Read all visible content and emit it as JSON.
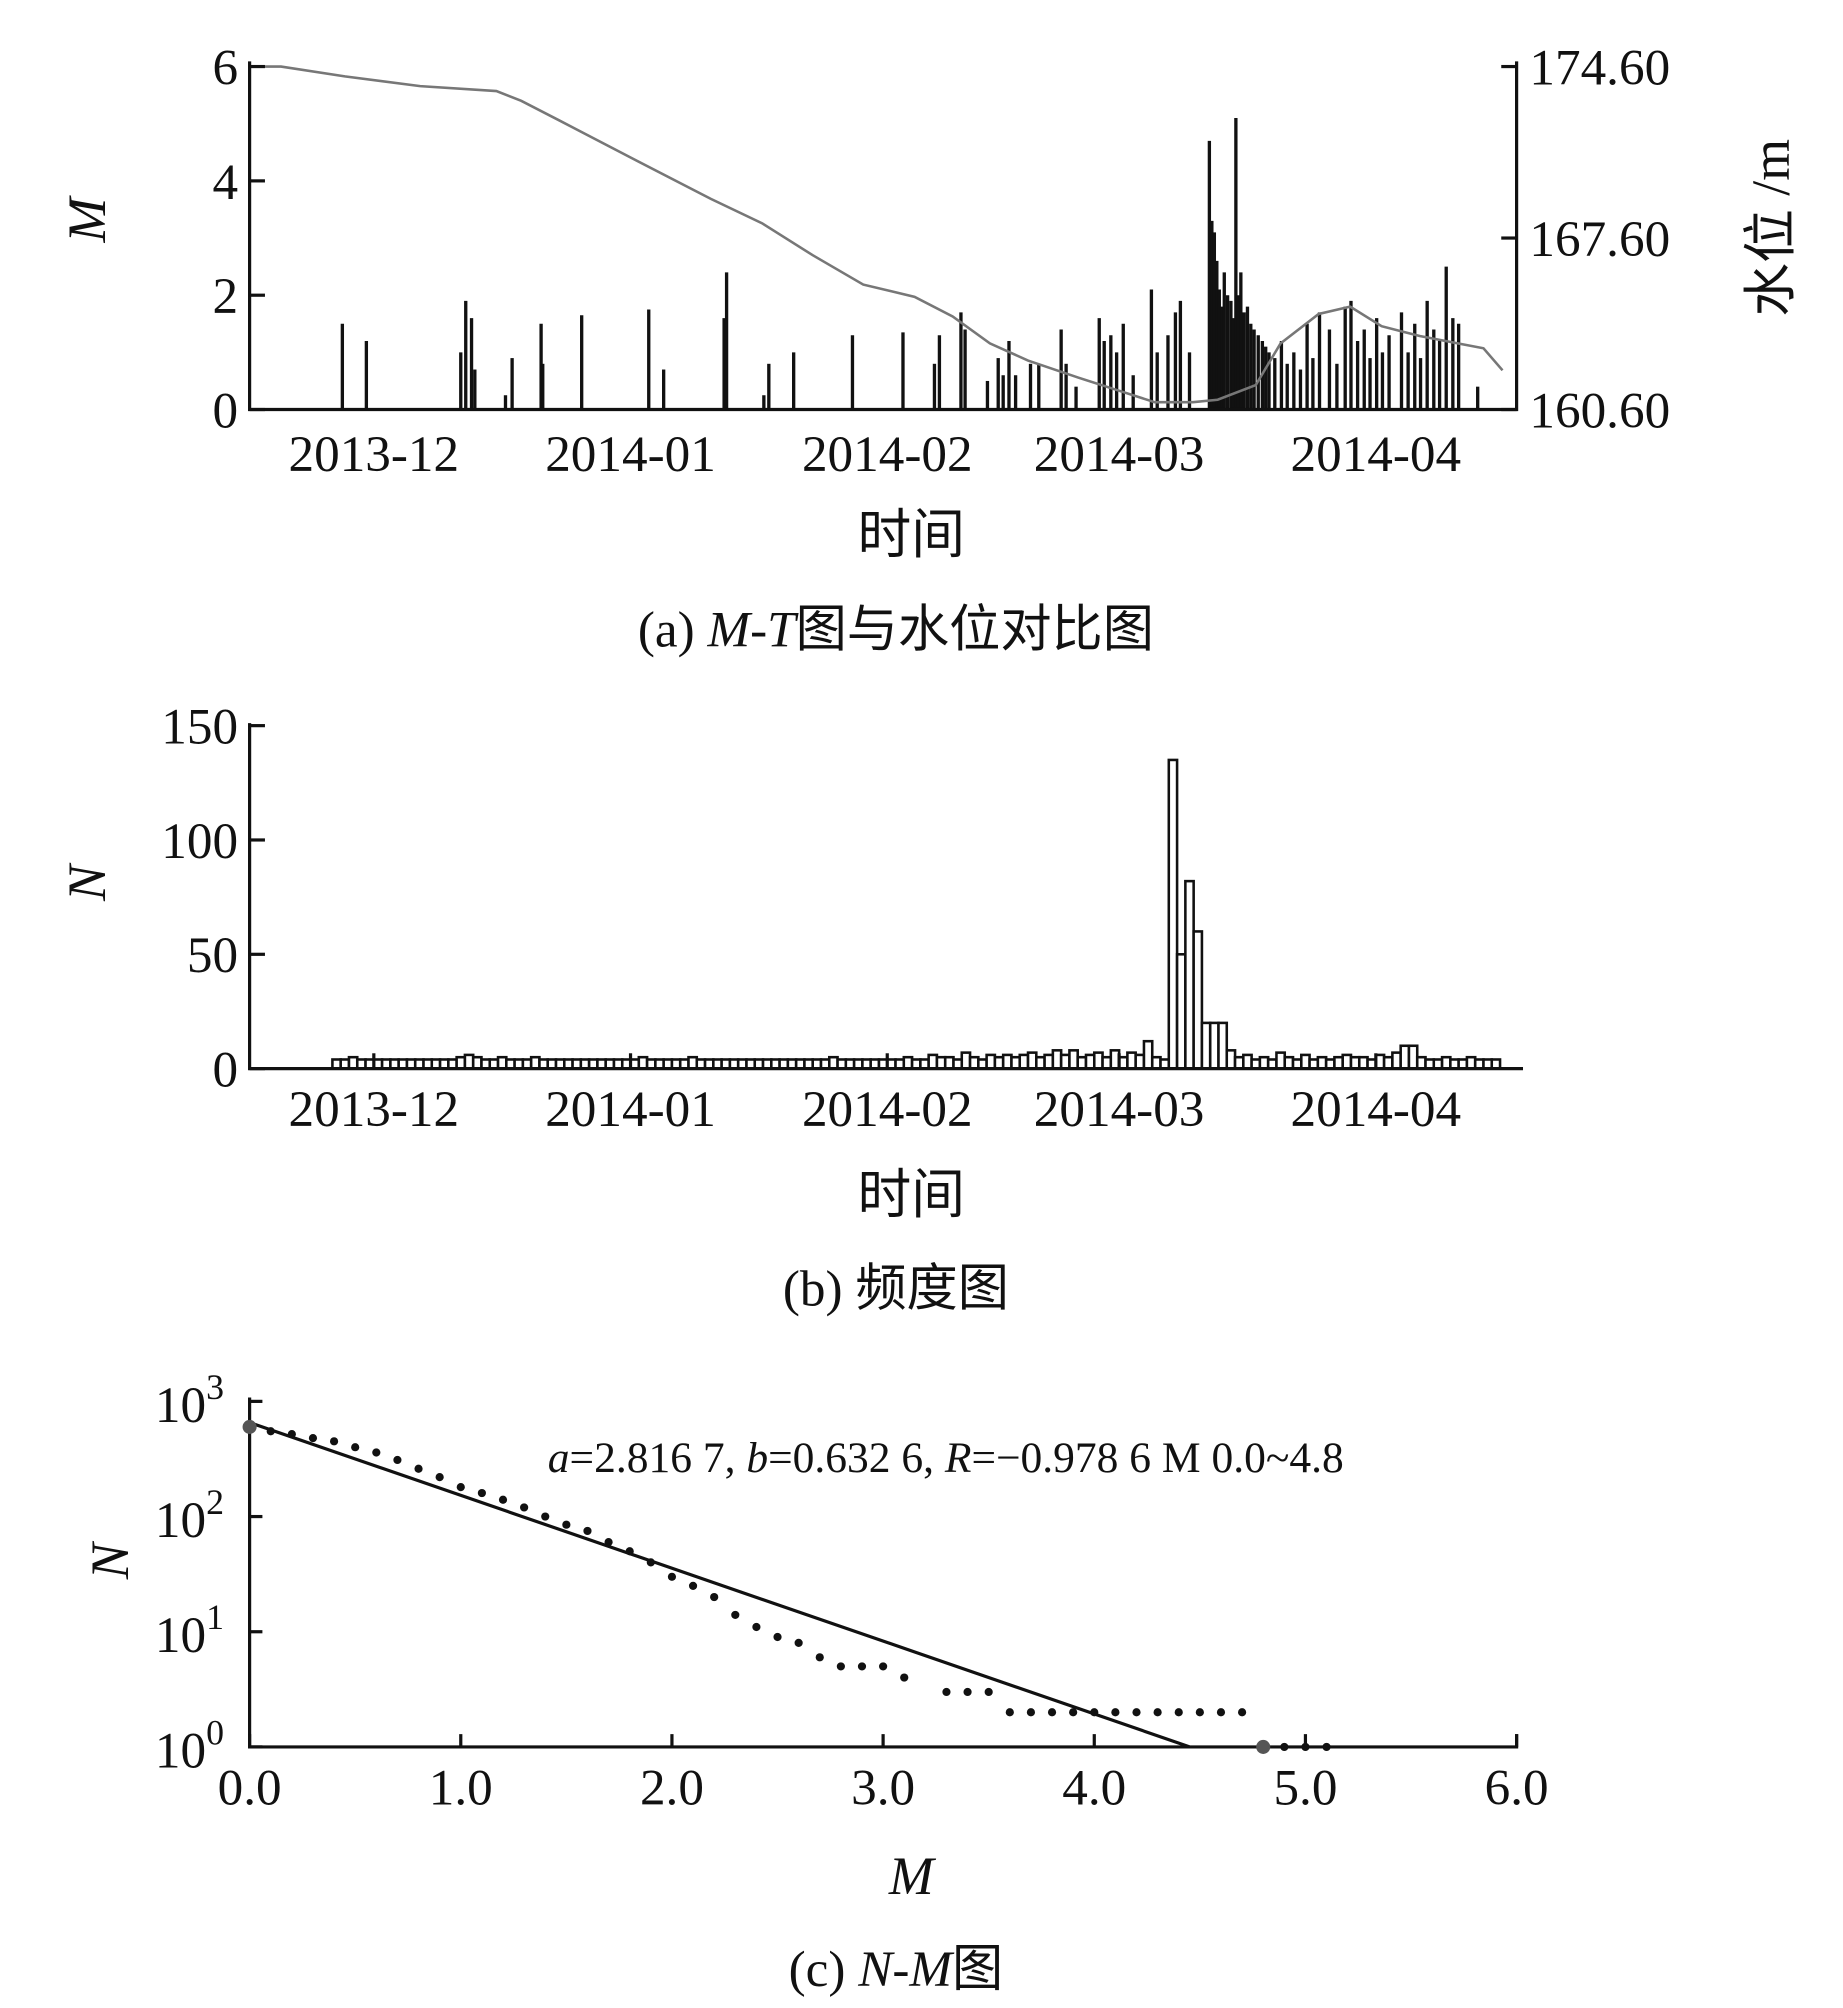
{
  "chart_data": [
    {
      "type": "bar",
      "title_parts": {
        "prefix": "(a) ",
        "italic": "M-T",
        "suffix": "图与水位对比图"
      },
      "xlabel": "时间",
      "ylabel": "M",
      "ylabel_right": "水位 /m",
      "x_unit": "days since 2013-11-16",
      "xlim": [
        0,
        153
      ],
      "ylim": [
        0,
        6
      ],
      "ylim_right": [
        160.6,
        174.6
      ],
      "xticks": [
        {
          "label": "2013-12",
          "day": 15
        },
        {
          "label": "2014-01",
          "day": 46
        },
        {
          "label": "2014-02",
          "day": 77
        },
        {
          "label": "2014-03",
          "day": 105
        },
        {
          "label": "2014-04",
          "day": 136
        }
      ],
      "yticks": [
        "0",
        "2",
        "4",
        "6"
      ],
      "yticks_right": [
        "160.60",
        "167.60",
        "174.60"
      ],
      "magnitude_events": [
        [
          11.2,
          1.5
        ],
        [
          14.1,
          1.2
        ],
        [
          25.5,
          1.0
        ],
        [
          26.1,
          1.9
        ],
        [
          26.8,
          1.6
        ],
        [
          27.2,
          0.7
        ],
        [
          30.9,
          0.25
        ],
        [
          31.7,
          0.9
        ],
        [
          35.2,
          1.5
        ],
        [
          35.4,
          0.8
        ],
        [
          40.1,
          1.65
        ],
        [
          48.2,
          1.75
        ],
        [
          50,
          0.7
        ],
        [
          57.3,
          1.6
        ],
        [
          57.6,
          2.4
        ],
        [
          62.1,
          0.25
        ],
        [
          62.7,
          0.8
        ],
        [
          65.7,
          1.0
        ],
        [
          72.8,
          1.3
        ],
        [
          78.9,
          1.35
        ],
        [
          82.7,
          0.8
        ],
        [
          83.3,
          1.3
        ],
        [
          85.9,
          1.7
        ],
        [
          86.4,
          1.4
        ],
        [
          89.1,
          0.5
        ],
        [
          90.4,
          0.9
        ],
        [
          91,
          0.6
        ],
        [
          91.7,
          1.2
        ],
        [
          92.5,
          0.6
        ],
        [
          94.3,
          0.8
        ],
        [
          95.3,
          0.8
        ],
        [
          98,
          1.4
        ],
        [
          98.6,
          0.8
        ],
        [
          99.8,
          0.4
        ],
        [
          102.6,
          1.6
        ],
        [
          103.2,
          1.2
        ],
        [
          104,
          1.3
        ],
        [
          104.7,
          1.0
        ],
        [
          105.5,
          1.5
        ],
        [
          106.7,
          0.6
        ],
        [
          108.9,
          2.1
        ],
        [
          109.6,
          1.0
        ],
        [
          110.9,
          1.3
        ],
        [
          111.8,
          1.7
        ],
        [
          112.4,
          1.9
        ],
        [
          113.5,
          1.0
        ],
        [
          115.9,
          4.7
        ],
        [
          116.2,
          3.3
        ],
        [
          116.5,
          3.1
        ],
        [
          116.8,
          2.6
        ],
        [
          117.1,
          2.1
        ],
        [
          117.4,
          1.8
        ],
        [
          117.7,
          2.4
        ],
        [
          118.1,
          2.0
        ],
        [
          118.5,
          1.9
        ],
        [
          118.8,
          1.6
        ],
        [
          119.1,
          5.1
        ],
        [
          119.4,
          2.0
        ],
        [
          119.7,
          2.4
        ],
        [
          120.1,
          1.7
        ],
        [
          120.5,
          1.8
        ],
        [
          120.9,
          1.5
        ],
        [
          121.3,
          1.4
        ],
        [
          121.8,
          1.3
        ],
        [
          122.3,
          1.2
        ],
        [
          122.7,
          1.1
        ],
        [
          123.1,
          1.0
        ],
        [
          123.8,
          0.9
        ],
        [
          124.6,
          1.2
        ],
        [
          125.3,
          0.8
        ],
        [
          126.1,
          1.0
        ],
        [
          126.9,
          0.7
        ],
        [
          127.7,
          1.5
        ],
        [
          128.4,
          0.9
        ],
        [
          129.2,
          1.7
        ],
        [
          130.4,
          1.4
        ],
        [
          131.3,
          0.8
        ],
        [
          132.3,
          1.8
        ],
        [
          133,
          1.9
        ],
        [
          133.8,
          1.2
        ],
        [
          134.6,
          1.4
        ],
        [
          135.3,
          0.9
        ],
        [
          136.1,
          1.6
        ],
        [
          136.8,
          1.0
        ],
        [
          137.6,
          1.3
        ],
        [
          139.1,
          1.7
        ],
        [
          139.9,
          1.0
        ],
        [
          140.7,
          1.5
        ],
        [
          141.4,
          0.9
        ],
        [
          142.2,
          1.9
        ],
        [
          143,
          1.4
        ],
        [
          143.7,
          1.2
        ],
        [
          144.5,
          2.5
        ],
        [
          145.3,
          1.6
        ],
        [
          146,
          1.5
        ],
        [
          148.3,
          0.4
        ]
      ],
      "water_level": [
        [
          0,
          174.6
        ],
        [
          3.8,
          174.6
        ],
        [
          11.5,
          174.2
        ],
        [
          20.6,
          173.8
        ],
        [
          29.8,
          173.6
        ],
        [
          32.8,
          173.2
        ],
        [
          37.4,
          172.4
        ],
        [
          46.5,
          170.8
        ],
        [
          55.7,
          169.2
        ],
        [
          61.9,
          168.2
        ],
        [
          68,
          166.9
        ],
        [
          74.1,
          165.7
        ],
        [
          80.3,
          165.2
        ],
        [
          84.9,
          164.4
        ],
        [
          89.4,
          163.3
        ],
        [
          94,
          162.6
        ],
        [
          100.1,
          161.9
        ],
        [
          104.7,
          161.4
        ],
        [
          109.3,
          160.9
        ],
        [
          113.9,
          160.9
        ],
        [
          116.9,
          161.0
        ],
        [
          121.5,
          161.6
        ],
        [
          124.5,
          163.3
        ],
        [
          129.1,
          164.5
        ],
        [
          132.9,
          164.8
        ],
        [
          136.7,
          164.0
        ],
        [
          141.3,
          163.6
        ],
        [
          145.9,
          163.3
        ],
        [
          149,
          163.1
        ],
        [
          151.3,
          162.2
        ]
      ]
    },
    {
      "type": "bar",
      "title_parts": {
        "prefix": "(b) ",
        "suffix": "频度图"
      },
      "xlabel": "时间",
      "ylabel": "N",
      "xlim": [
        0,
        153
      ],
      "ylim": [
        0,
        150
      ],
      "xticks": [
        {
          "label": "2013-12",
          "day": 15
        },
        {
          "label": "2014-01",
          "day": 46
        },
        {
          "label": "2014-02",
          "day": 77
        },
        {
          "label": "2014-03",
          "day": 105
        },
        {
          "label": "2014-04",
          "day": 136
        }
      ],
      "yticks": [
        "0",
        "50",
        "100",
        "150"
      ],
      "start_day": 10,
      "daily_counts": [
        4,
        4,
        5,
        4,
        4,
        4,
        4,
        4,
        4,
        4,
        4,
        4,
        4,
        4,
        4,
        5,
        6,
        5,
        4,
        4,
        5,
        4,
        4,
        4,
        5,
        4,
        4,
        4,
        4,
        4,
        4,
        4,
        4,
        4,
        4,
        4,
        4,
        5,
        4,
        4,
        4,
        4,
        4,
        5,
        4,
        4,
        4,
        4,
        4,
        4,
        4,
        4,
        4,
        4,
        4,
        4,
        4,
        4,
        4,
        4,
        5,
        4,
        4,
        4,
        4,
        4,
        4,
        4,
        4,
        5,
        4,
        4,
        6,
        5,
        5,
        4,
        7,
        5,
        4,
        6,
        5,
        6,
        5,
        6,
        7,
        5,
        6,
        8,
        6,
        8,
        5,
        6,
        7,
        5,
        8,
        5,
        7,
        6,
        12,
        5,
        4,
        135,
        50,
        82,
        60,
        20,
        20,
        20,
        8,
        5,
        6,
        4,
        5,
        4,
        7,
        5,
        4,
        6,
        4,
        5,
        4,
        5,
        6,
        5,
        5,
        4,
        6,
        5,
        7,
        10,
        10,
        5,
        4,
        4,
        5,
        4,
        4,
        5,
        4,
        4,
        4
      ]
    },
    {
      "type": "scatter",
      "title_parts": {
        "prefix": "(c) ",
        "italic": "N-M",
        "suffix": "图"
      },
      "xlabel": "M",
      "ylabel": "N",
      "xlim": [
        0,
        6
      ],
      "ylim_log10": [
        0,
        3
      ],
      "yscale": "log",
      "xticks": [
        "0.0",
        "1.0",
        "2.0",
        "3.0",
        "4.0",
        "5.0",
        "6.0"
      ],
      "yticks": [
        {
          "base": "10",
          "exp": "0"
        },
        {
          "base": "10",
          "exp": "1"
        },
        {
          "base": "10",
          "exp": "2"
        },
        {
          "base": "10",
          "exp": "3"
        }
      ],
      "annotation_parts": {
        "a_sym": "a",
        "a_val": "=2.816 7, ",
        "b_sym": "b",
        "b_val": "=0.632 6, ",
        "r_sym": "R",
        "r_val": "=−0.978 6 M 0.0~4.8"
      },
      "fit": {
        "a": 2.8167,
        "b": 0.6326,
        "m_range": [
          0,
          4.45
        ]
      },
      "points": [
        [
          0,
          600
        ],
        [
          0.1,
          550
        ],
        [
          0.2,
          520
        ],
        [
          0.3,
          480
        ],
        [
          0.4,
          450
        ],
        [
          0.5,
          400
        ],
        [
          0.6,
          360
        ],
        [
          0.7,
          310
        ],
        [
          0.8,
          260
        ],
        [
          0.9,
          220
        ],
        [
          1.0,
          180
        ],
        [
          1.1,
          160
        ],
        [
          1.2,
          140
        ],
        [
          1.3,
          120
        ],
        [
          1.4,
          100
        ],
        [
          1.5,
          85
        ],
        [
          1.6,
          75
        ],
        [
          1.7,
          60
        ],
        [
          1.8,
          50
        ],
        [
          1.9,
          40
        ],
        [
          2.0,
          30
        ],
        [
          2.1,
          25
        ],
        [
          2.2,
          20
        ],
        [
          2.3,
          14
        ],
        [
          2.4,
          11
        ],
        [
          2.5,
          9
        ],
        [
          2.6,
          8
        ],
        [
          2.7,
          6
        ],
        [
          2.8,
          5
        ],
        [
          2.9,
          5
        ],
        [
          3.0,
          5
        ],
        [
          3.1,
          4
        ],
        [
          3.3,
          3
        ],
        [
          3.4,
          3
        ],
        [
          3.5,
          3
        ],
        [
          3.6,
          2
        ],
        [
          3.7,
          2
        ],
        [
          3.8,
          2
        ],
        [
          3.9,
          2
        ],
        [
          4.0,
          2
        ],
        [
          4.1,
          2
        ],
        [
          4.2,
          2
        ],
        [
          4.3,
          2
        ],
        [
          4.4,
          2
        ],
        [
          4.5,
          2
        ],
        [
          4.6,
          2
        ],
        [
          4.7,
          2
        ],
        [
          4.8,
          1
        ],
        [
          4.9,
          1
        ],
        [
          5.0,
          1
        ],
        [
          5.1,
          1
        ]
      ]
    }
  ]
}
